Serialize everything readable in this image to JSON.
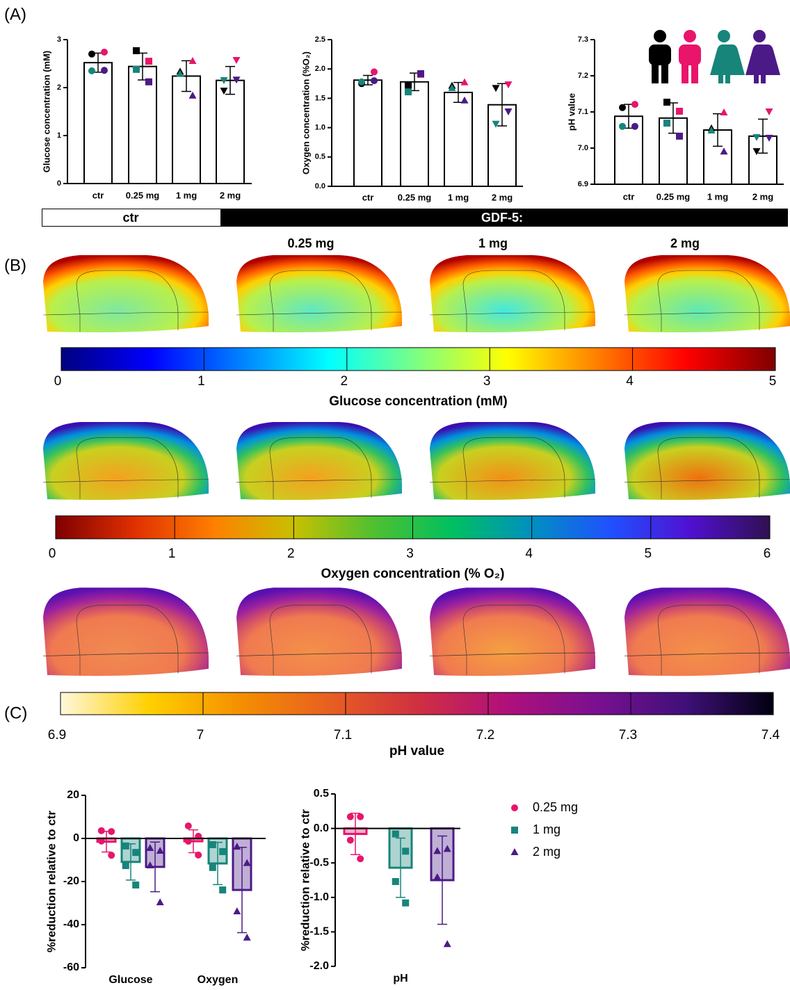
{
  "panels": [
    "(A)",
    "(B)",
    "(C)"
  ],
  "treatment_bar": {
    "ctr": "ctr",
    "gdf5": "GDF-5:"
  },
  "column_labels": [
    "0.25 mg",
    "1 mg",
    "2 mg"
  ],
  "chart_data": [
    {
      "type": "bar",
      "ylabel": "Glucose concentration (mM)",
      "categories": [
        "ctr",
        "0.25 mg",
        "1 mg",
        "2 mg"
      ],
      "values": [
        2.52,
        2.44,
        2.24,
        2.15
      ],
      "errors": [
        0.2,
        0.28,
        0.32,
        0.29
      ],
      "markers": [
        "circle",
        "square",
        "triangle",
        "triangle-down"
      ],
      "point_colors": [
        "#000000",
        "#e8156b",
        "#17857a",
        "#4b1a87"
      ],
      "points": [
        [
          2.7,
          2.74,
          2.35,
          2.36
        ],
        [
          2.77,
          2.55,
          2.38,
          2.12
        ],
        [
          2.33,
          2.55,
          2.28,
          1.83
        ],
        [
          1.94,
          2.58,
          2.16,
          2.17
        ]
      ],
      "ylim": [
        0,
        3
      ],
      "yticks": [
        0,
        1,
        2,
        3
      ],
      "color": "#ffffff"
    },
    {
      "type": "bar",
      "ylabel": "Oxygen concentration (%O₂)",
      "categories": [
        "ctr",
        "0.25 mg",
        "1 mg",
        "2 mg"
      ],
      "values": [
        1.81,
        1.78,
        1.6,
        1.39
      ],
      "errors": [
        0.08,
        0.15,
        0.17,
        0.36
      ],
      "markers": [
        "circle",
        "square",
        "triangle",
        "triangle-down"
      ],
      "point_colors": [
        "#000000",
        "#e8156b",
        "#17857a",
        "#4b1a87"
      ],
      "points": [
        [
          1.75,
          1.95,
          1.78,
          1.8
        ],
        [
          1.71,
          1.91,
          1.61,
          1.92
        ],
        [
          1.71,
          1.77,
          1.67,
          1.46
        ],
        [
          1.68,
          1.74,
          1.07,
          1.28
        ]
      ],
      "ylim": [
        0,
        2.5
      ],
      "yticks": [
        {
          "value": 0,
          "label": "0.0"
        },
        0.5,
        {
          "value": 1,
          "label": "1.0"
        },
        1.5,
        {
          "value": 2,
          "label": "2.0"
        },
        2.5
      ],
      "color": "#ffffff"
    },
    {
      "type": "bar",
      "ylabel": "pH value",
      "categories": [
        "ctr",
        "0.25 mg",
        "1 mg",
        "2 mg"
      ],
      "values": [
        7.088,
        7.083,
        7.05,
        7.033
      ],
      "errors": [
        0.033,
        0.042,
        0.045,
        0.047
      ],
      "markers": [
        "circle",
        "square",
        "triangle",
        "triangle-down"
      ],
      "point_colors": [
        "#000000",
        "#e8156b",
        "#17857a",
        "#4b1a87"
      ],
      "points": [
        [
          7.112,
          7.121,
          7.06,
          7.06
        ],
        [
          7.127,
          7.102,
          7.069,
          7.033
        ],
        [
          7.054,
          7.098,
          7.048,
          6.99
        ],
        [
          6.992,
          7.102,
          7.031,
          7.029
        ]
      ],
      "ylim": [
        6.9,
        7.3
      ],
      "yticks": [
        6.9,
        {
          "value": 7,
          "label": "7.0"
        },
        7.1,
        7.2,
        7.3
      ],
      "color": "#ffffff"
    },
    {
      "type": "colorbar",
      "title": "Glucose concentration (mM)",
      "xlim": [
        0,
        5
      ],
      "xticks": [
        0,
        1,
        2,
        3,
        4,
        5
      ],
      "colors": [
        "#00007f",
        "#0000ff",
        "#007fff",
        "#00ffff",
        "#7fff7f",
        "#ffff00",
        "#ff7f00",
        "#ff0000",
        "#7f0000"
      ]
    },
    {
      "type": "colorbar",
      "title": "Oxygen concentration (% O₂)",
      "xlim": [
        0,
        6
      ],
      "xticks": [
        0,
        1,
        2,
        3,
        4,
        5,
        6
      ],
      "colors": [
        "#7f0000",
        "#e03000",
        "#ff8000",
        "#c8c000",
        "#50c030",
        "#00c060",
        "#0090c0",
        "#2050ff",
        "#5010d0",
        "#301050"
      ]
    },
    {
      "type": "colorbar",
      "title": "pH value",
      "xlim": [
        6.9,
        7.4
      ],
      "xticks": [
        6.9,
        7,
        7.1,
        7.2,
        7.3,
        7.4
      ],
      "colors": [
        "#fff8dc",
        "#ffd000",
        "#f59000",
        "#e86020",
        "#d03040",
        "#b0107a",
        "#7a1090",
        "#40107a",
        "#000010"
      ]
    },
    {
      "type": "grouped-bar",
      "ylabel": "%reduction relative to ctr",
      "categories": [
        "Glucose",
        "Oxygen"
      ],
      "series": [
        {
          "color": "#e8156b",
          "marker": "circle",
          "values": [
            -1.5,
            -1.3
          ],
          "errors": [
            4.8,
            5.3
          ],
          "points": [
            [
              3.6,
              3.2,
              -1.2,
              -7.8
            ],
            [
              5.8,
              1.0,
              -1.3,
              -7.7
            ]
          ]
        },
        {
          "color": "#17857a",
          "marker": "square",
          "values": [
            -10.9,
            -11.6
          ],
          "errors": [
            8.4,
            9.8
          ],
          "points": [
            [
              -3.5,
              -6.5,
              -12.6,
              -21.6
            ],
            [
              -2.9,
              -6.1,
              -13.5,
              -23.9
            ]
          ]
        },
        {
          "color": "#4b1a87",
          "marker": "triangle",
          "values": [
            -13.2,
            -23.9
          ],
          "errors": [
            11.5,
            19.8
          ],
          "points": [
            [
              -4.5,
              -5.8,
              -12.6,
              -29.7
            ],
            [
              -3.9,
              -11.5,
              -33.9,
              -46.1
            ]
          ]
        }
      ],
      "ylim": [
        -60,
        20
      ],
      "yticks": [
        -60,
        -40,
        -20,
        0,
        20
      ]
    },
    {
      "type": "grouped-bar",
      "ylabel": "%reduction relative to ctr",
      "categories": [
        "pH"
      ],
      "series": [
        {
          "name": "0.25 mg",
          "color": "#e8156b",
          "marker": "circle",
          "values": [
            -0.08
          ],
          "errors": [
            0.3
          ],
          "points": [
            [
              0.17,
              0.17,
              -0.17,
              -0.44
            ]
          ]
        },
        {
          "name": "1 mg",
          "color": "#17857a",
          "marker": "square",
          "values": [
            -0.57
          ],
          "errors": [
            0.43
          ],
          "points": [
            [
              -0.08,
              -0.33,
              -0.77,
              -1.08
            ]
          ]
        },
        {
          "name": "2 mg",
          "color": "#4b1a87",
          "marker": "triangle",
          "values": [
            -0.75
          ],
          "errors": [
            0.64
          ],
          "points": [
            [
              -0.33,
              -0.3,
              -0.71,
              -1.68
            ]
          ]
        }
      ],
      "ylim": [
        -2,
        0.5
      ],
      "yticks": [
        {
          "value": -2,
          "label": "-2.0"
        },
        -1.5,
        {
          "value": -1,
          "label": "-1.0"
        },
        -0.5,
        {
          "value": 0,
          "label": "0.0"
        },
        0.5
      ],
      "legend": "right"
    }
  ]
}
